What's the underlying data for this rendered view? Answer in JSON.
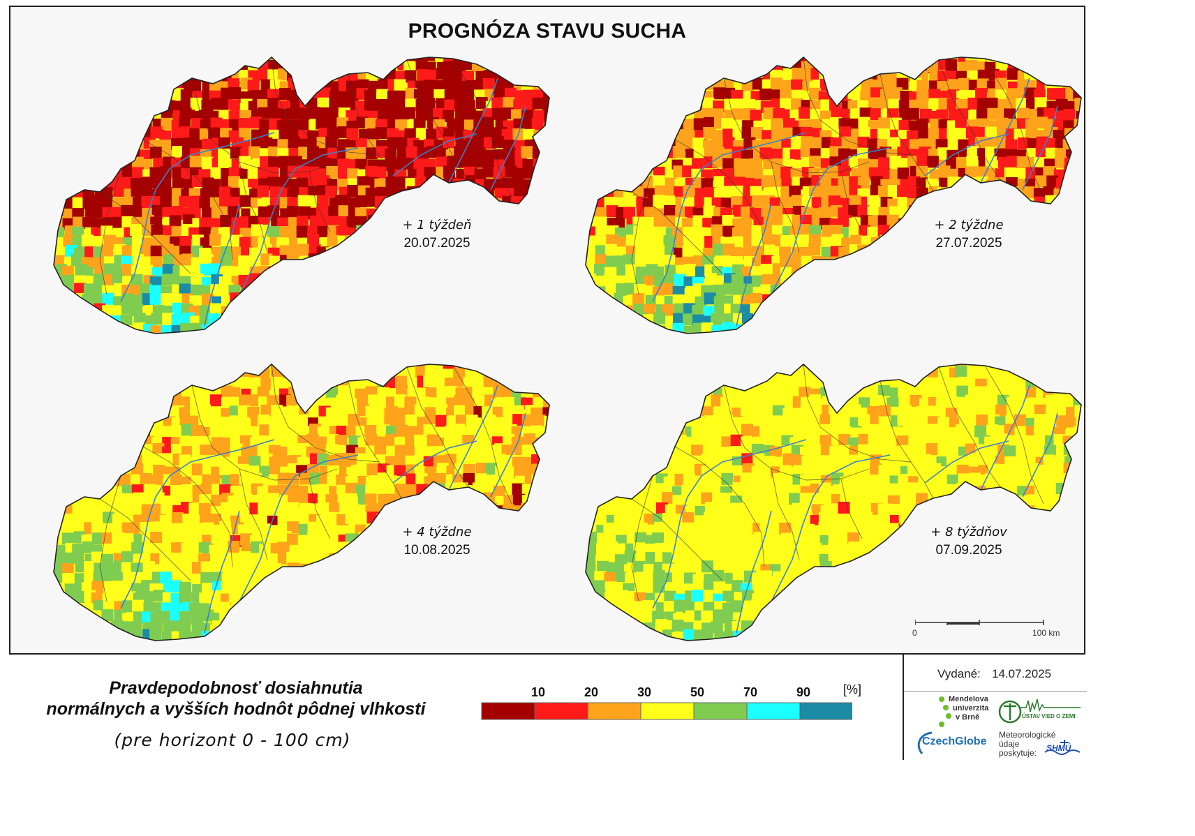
{
  "title": "PROGNÓZA STAVU SUCHA",
  "panels": [
    {
      "lead": "+ 1 týždeň",
      "date": "20.07.2025",
      "drought_level": 0
    },
    {
      "lead": "+ 2 týždne",
      "date": "27.07.2025",
      "drought_level": 1
    },
    {
      "lead": "+ 4 týždne",
      "date": "10.08.2025",
      "drought_level": 2
    },
    {
      "lead": "+ 8 týždňov",
      "date": "07.09.2025",
      "drought_level": 3
    }
  ],
  "scale": {
    "zero": "0",
    "end": "100 km"
  },
  "legend": {
    "title_line1": "Pravdepodobnosť dosiahnutia",
    "title_line2": "normálnych a vyšších hodnôt pôdnej vlhkosti",
    "subtitle": "(pre horizont 0 - 100 cm)",
    "unit": "[%]",
    "ticks": [
      "10",
      "20",
      "30",
      "50",
      "70",
      "90"
    ],
    "classes": [
      {
        "color": "#a50000"
      },
      {
        "color": "#ff1a1a"
      },
      {
        "color": "#ffa31a"
      },
      {
        "color": "#ffff1a"
      },
      {
        "color": "#7fcc50"
      },
      {
        "color": "#1affff"
      },
      {
        "color": "#1a8ca6"
      }
    ]
  },
  "issued": {
    "label": "Vydané:",
    "date": "14.07.2025"
  },
  "logos": {
    "mendel_line1": "Mendelova",
    "mendel_line2": "univerzita",
    "mendel_line3": "v Brně",
    "czechglobe": "CzechGlobe",
    "uvz": "ÚSTAV VIED O ZEMI",
    "meteo_line1": "Meteorologické",
    "meteo_line2": "údaje",
    "meteo_line3": "poskytuje:",
    "shmu": "SHMÚ"
  }
}
